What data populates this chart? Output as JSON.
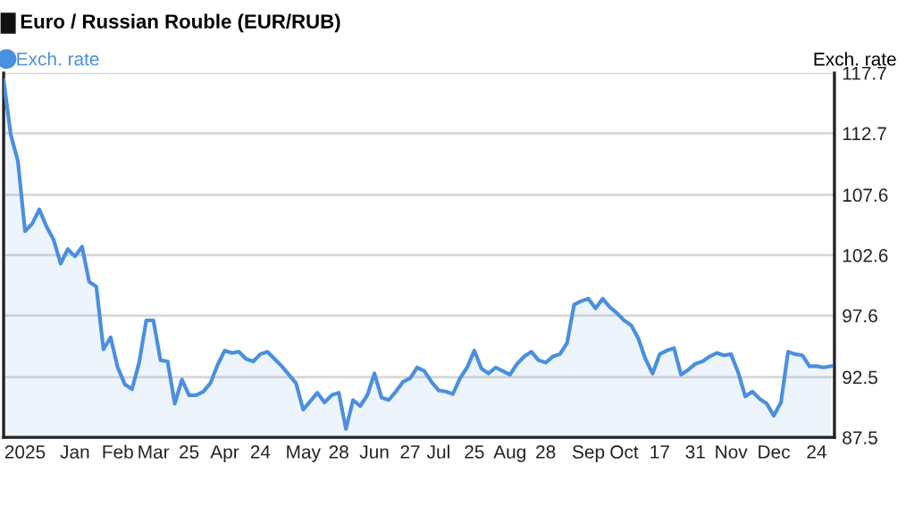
{
  "chart_data": {
    "type": "area",
    "title": "Euro / Russian Rouble (EUR/RUB)",
    "ylabel": "Exch. rate",
    "legend": "top left",
    "grid": "y",
    "marker": "none",
    "line_style": "solid",
    "ylim": [
      87.5,
      117.7
    ],
    "yticks": [
      87.5,
      92.5,
      97.6,
      102.6,
      107.6,
      112.7,
      117.7
    ],
    "categories": [
      null,
      null,
      null,
      "2025",
      null,
      null,
      null,
      null,
      null,
      null,
      "Jan",
      null,
      null,
      null,
      null,
      null,
      "Feb",
      null,
      null,
      null,
      null,
      "Mar",
      null,
      null,
      null,
      null,
      "25",
      null,
      null,
      null,
      null,
      "Apr",
      null,
      null,
      null,
      null,
      "24",
      null,
      null,
      null,
      null,
      null,
      "May",
      null,
      null,
      null,
      null,
      "28",
      null,
      null,
      null,
      null,
      "Jun",
      null,
      null,
      null,
      null,
      "27",
      null,
      null,
      null,
      "Jul",
      null,
      null,
      null,
      null,
      "25",
      null,
      null,
      null,
      null,
      "Aug",
      null,
      null,
      null,
      null,
      "28",
      null,
      null,
      null,
      null,
      null,
      "Sep",
      null,
      null,
      null,
      null,
      "Oct",
      null,
      null,
      null,
      null,
      "17",
      null,
      null,
      null,
      null,
      "31",
      null,
      null,
      null,
      null,
      "Nov",
      null,
      null,
      null,
      null,
      null,
      "Dec",
      null,
      null,
      null,
      null,
      null,
      "24",
      null,
      null
    ],
    "series": [
      {
        "name": "Exch. rate",
        "color": "#4a8fe0",
        "values": [
          117.1,
          112.6,
          110.4,
          104.6,
          105.2,
          106.4,
          105.0,
          103.9,
          101.9,
          103.1,
          102.5,
          103.3,
          100.4,
          100.0,
          94.8,
          95.8,
          93.3,
          91.9,
          91.5,
          93.7,
          97.2,
          97.2,
          93.9,
          93.8,
          90.3,
          92.3,
          91.0,
          91.0,
          91.3,
          92.0,
          93.5,
          94.7,
          94.5,
          94.6,
          94.0,
          93.8,
          94.4,
          94.6,
          94.0,
          93.4,
          92.7,
          92.0,
          89.8,
          90.5,
          91.2,
          90.4,
          91.0,
          91.2,
          88.2,
          90.6,
          90.1,
          91.0,
          92.8,
          90.8,
          90.6,
          91.3,
          92.1,
          92.4,
          93.3,
          93.0,
          92.1,
          91.4,
          91.3,
          91.1,
          92.4,
          93.3,
          94.7,
          93.2,
          92.8,
          93.3,
          93.0,
          92.7,
          93.6,
          94.2,
          94.6,
          93.9,
          93.7,
          94.2,
          94.4,
          95.3,
          98.5,
          98.8,
          99.0,
          98.2,
          99.0,
          98.3,
          97.8,
          97.2,
          96.8,
          95.7,
          94.0,
          92.8,
          94.4,
          94.7,
          94.9,
          92.7,
          93.1,
          93.6,
          93.8,
          94.2,
          94.5,
          94.3,
          94.4,
          92.9,
          90.9,
          91.3,
          90.7,
          90.3,
          89.3,
          90.4,
          94.6,
          94.4,
          94.3,
          93.4,
          93.4,
          93.3,
          93.4
        ]
      }
    ]
  }
}
